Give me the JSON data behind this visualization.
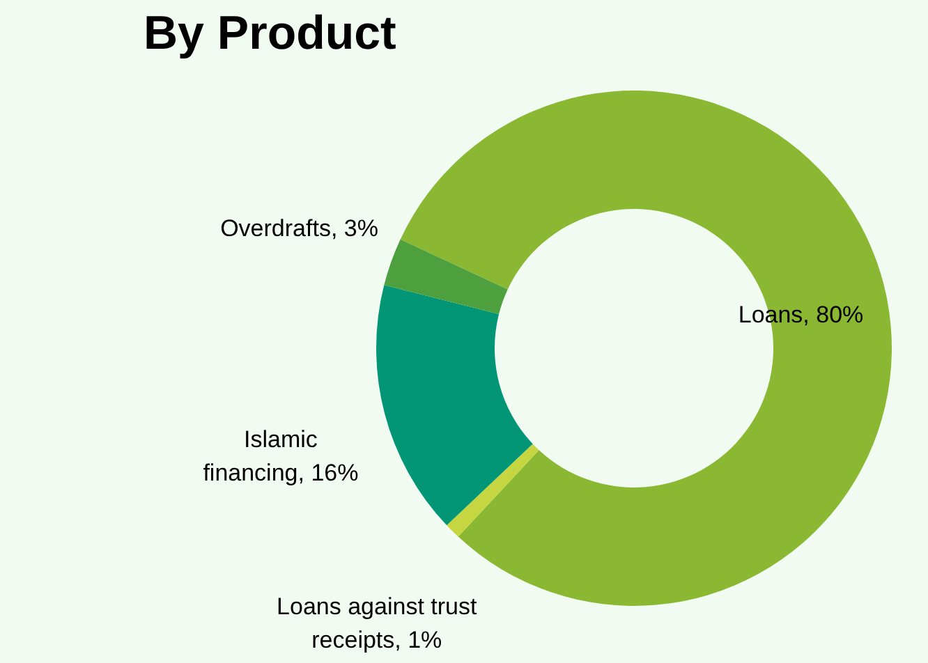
{
  "chart_data": {
    "type": "donut",
    "title": "By Product",
    "categories": [
      "Loans",
      "Loans against trust receipts",
      "Islamic financing",
      "Overdrafts"
    ],
    "values": [
      80,
      1,
      16,
      3
    ],
    "value_labels": [
      "80%",
      "1%",
      "16%",
      "3%"
    ],
    "colors": [
      "#8ab833",
      "#c5d641",
      "#029676",
      "#4ea03e"
    ]
  }
}
